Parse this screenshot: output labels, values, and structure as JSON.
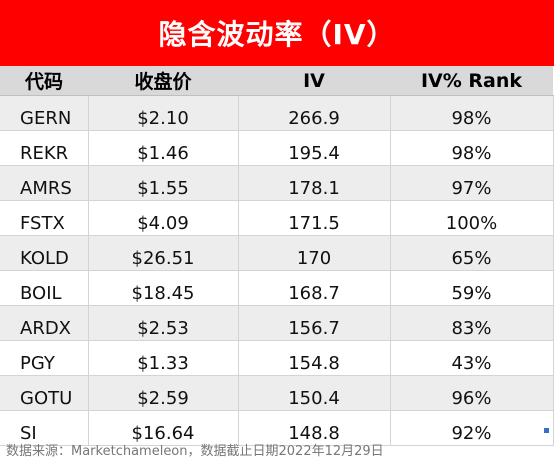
{
  "title": "隐含波动率（IV）",
  "headers": [
    "代码",
    "收盘价",
    "IV",
    "IV% Rank"
  ],
  "rows": [
    {
      "code": "GERN",
      "close": "$2.10",
      "iv": "266.9",
      "rank": "98%"
    },
    {
      "code": "REKR",
      "close": "$1.46",
      "iv": "195.4",
      "rank": "98%"
    },
    {
      "code": "AMRS",
      "close": "$1.55",
      "iv": "178.1",
      "rank": "97%"
    },
    {
      "code": "FSTX",
      "close": "$4.09",
      "iv": "171.5",
      "rank": "100%"
    },
    {
      "code": "KOLD",
      "close": "$26.51",
      "iv": "170",
      "rank": "65%"
    },
    {
      "code": "BOIL",
      "close": "$18.45",
      "iv": "168.7",
      "rank": "59%"
    },
    {
      "code": "ARDX",
      "close": "$2.53",
      "iv": "156.7",
      "rank": "83%"
    },
    {
      "code": "PGY",
      "close": "$1.33",
      "iv": "154.8",
      "rank": "43%"
    },
    {
      "code": "GOTU",
      "close": "$2.59",
      "iv": "150.4",
      "rank": "96%"
    },
    {
      "code": "SI",
      "close": "$16.64",
      "iv": "148.8",
      "rank": "92%"
    }
  ],
  "footer": "数据来源：Marketchameleon，数据截止日期2022年12月29日",
  "colors": {
    "title_bg": "#ff0000",
    "header_bg": "#d9d9d9",
    "alt_row_bg": "#ededed"
  }
}
